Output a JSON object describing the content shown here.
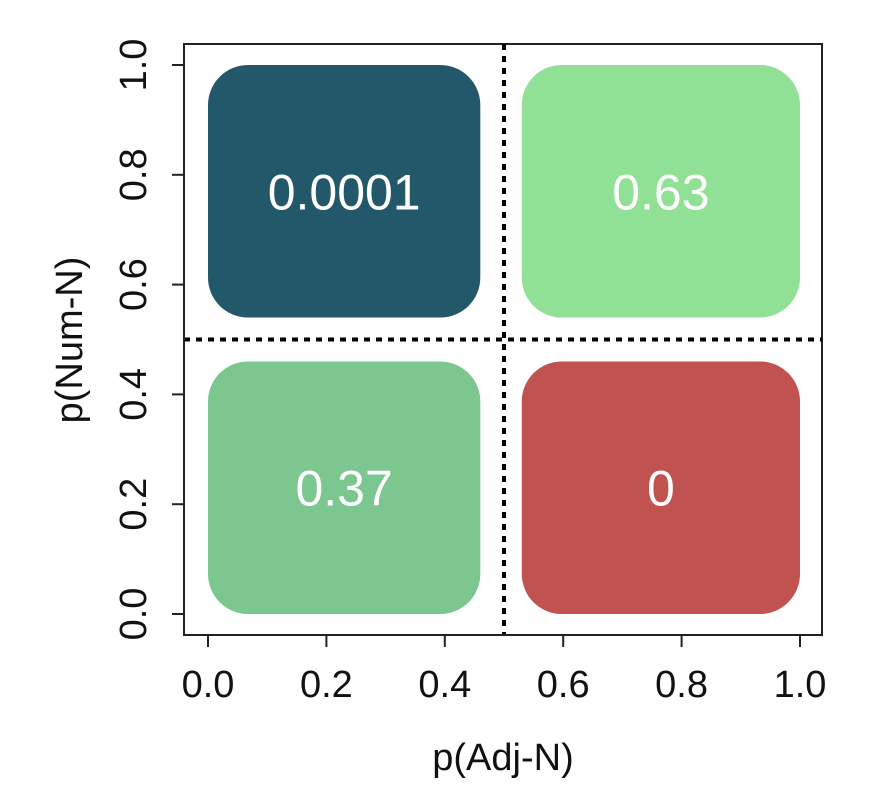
{
  "chart_data": {
    "type": "heatmap",
    "xlabel": "p(Adj-N)",
    "ylabel": "p(Num-N)",
    "xlim": [
      0,
      1
    ],
    "ylim": [
      0,
      1
    ],
    "x_ticks": [
      "0.0",
      "0.2",
      "0.4",
      "0.6",
      "0.8",
      "1.0"
    ],
    "y_ticks": [
      "0.0",
      "0.2",
      "0.4",
      "0.6",
      "0.8",
      "1.0"
    ],
    "divider": {
      "x": 0.5,
      "y": 0.5,
      "style": "dotted"
    },
    "cells": [
      {
        "x": [
          0.0,
          0.46
        ],
        "y": [
          0.54,
          1.0
        ],
        "value": 0.0001,
        "label": "0.0001",
        "color": "#22586a"
      },
      {
        "x": [
          0.53,
          1.0
        ],
        "y": [
          0.54,
          1.0
        ],
        "value": 0.63,
        "label": "0.63",
        "color": "#90e095"
      },
      {
        "x": [
          0.0,
          0.46
        ],
        "y": [
          0.0,
          0.46
        ],
        "value": 0.37,
        "label": "0.37",
        "color": "#7bc78f"
      },
      {
        "x": [
          0.53,
          1.0
        ],
        "y": [
          0.0,
          0.46
        ],
        "value": 0,
        "label": "0",
        "color": "#c0524f"
      }
    ],
    "grid": false,
    "legend": "none"
  }
}
